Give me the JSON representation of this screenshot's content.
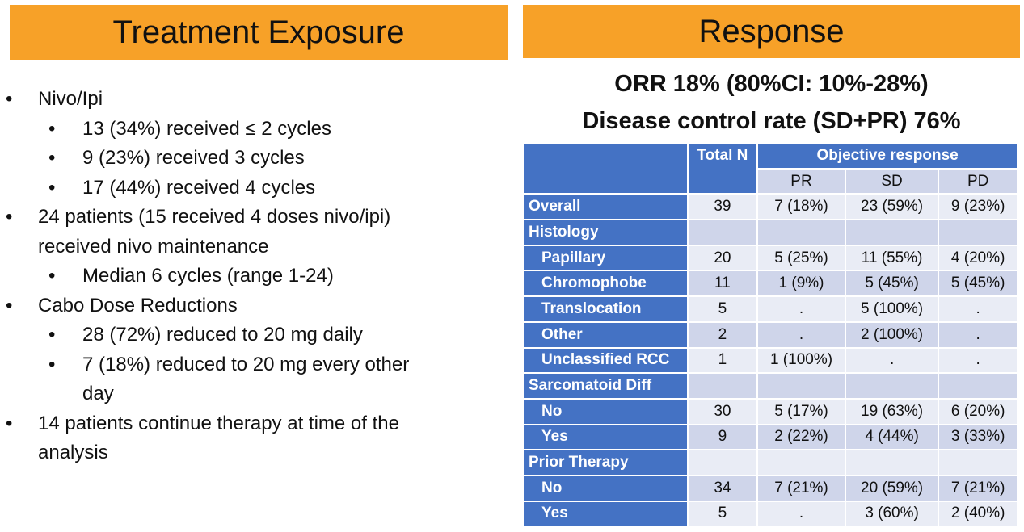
{
  "left": {
    "title": "Treatment Exposure",
    "bullets": [
      {
        "level": 1,
        "text": "Nivo/Ipi"
      },
      {
        "level": 2,
        "text": "13 (34%) received ≤ 2 cycles"
      },
      {
        "level": 2,
        "text": "9 (23%) received 3 cycles"
      },
      {
        "level": 2,
        "text": "17 (44%) received 4 cycles"
      },
      {
        "level": 1,
        "text": "24 patients (15 received 4 doses nivo/ipi)",
        "cont": "received nivo maintenance"
      },
      {
        "level": 2,
        "text": "Median 6 cycles (range 1-24)"
      },
      {
        "level": 1,
        "text": "Cabo Dose Reductions"
      },
      {
        "level": 2,
        "text": "28 (72%) reduced to 20 mg daily"
      },
      {
        "level": 2,
        "text": "7 (18%) reduced to  20 mg every other",
        "cont": "day"
      },
      {
        "level": 1,
        "text": "14 patients continue therapy at time of the",
        "cont": "analysis"
      }
    ]
  },
  "right": {
    "title": "Response",
    "orr": "ORR 18%  (80%CI: 10%-28%)",
    "dcr": "Disease control rate (SD+PR) 76%",
    "table": {
      "h_total": "Total N",
      "h_obj": "Objective response",
      "h_pr": "PR",
      "h_sd": "SD",
      "h_pd": "PD",
      "rows": [
        [
          "Overall",
          "39",
          "7 (18%)",
          "23 (59%)",
          "9 (23%)"
        ],
        [
          "Histology",
          "",
          "",
          "",
          ""
        ],
        [
          "Papillary",
          "20",
          "5 (25%)",
          "11 (55%)",
          "4 (20%)"
        ],
        [
          "Chromophobe",
          "11",
          "1 (9%)",
          "5 (45%)",
          "5 (45%)"
        ],
        [
          "Translocation",
          "5",
          ".",
          "5 (100%)",
          "."
        ],
        [
          "Other",
          "2",
          ".",
          "2 (100%)",
          "."
        ],
        [
          "Unclassified RCC",
          "1",
          "1 (100%)",
          ".",
          "."
        ],
        [
          "Sarcomatoid Diff",
          "",
          "",
          "",
          ""
        ],
        [
          "No",
          "30",
          "5 (17%)",
          "19 (63%)",
          "6 (20%)"
        ],
        [
          "Yes",
          "9",
          "2 (22%)",
          "4 (44%)",
          "3 (33%)"
        ],
        [
          "Prior Therapy",
          "",
          "",
          "",
          ""
        ],
        [
          "No",
          "34",
          "7 (21%)",
          "20 (59%)",
          "7 (21%)"
        ],
        [
          "Yes",
          "5",
          ".",
          "3 (60%)",
          "2 (40%)"
        ]
      ]
    }
  }
}
